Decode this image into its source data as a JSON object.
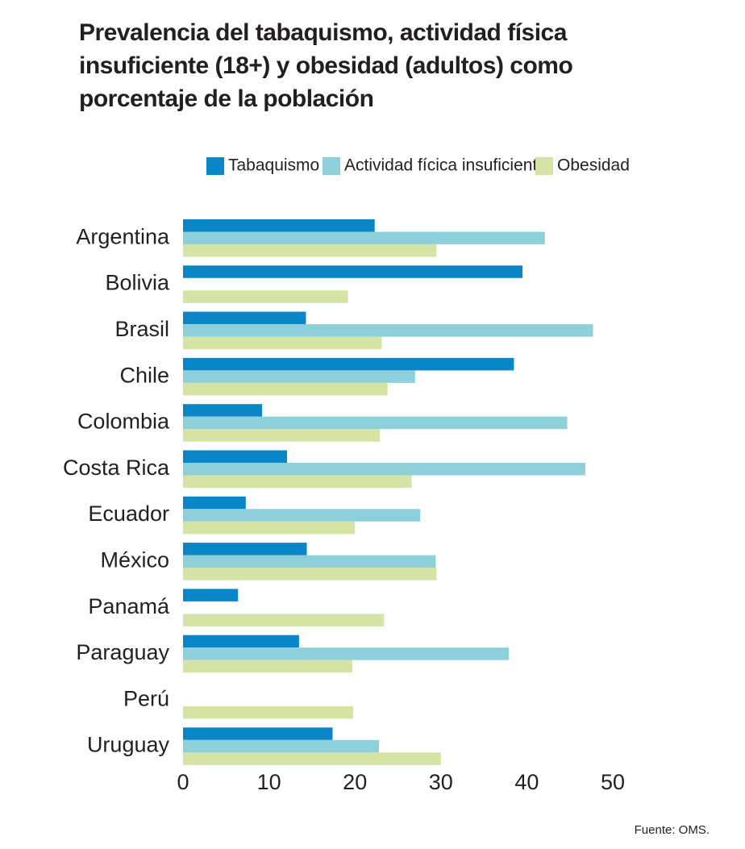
{
  "chart_data": {
    "type": "bar",
    "orientation": "horizontal",
    "title": "Prevalencia del tabaquismo, actividad física insuficiente (18+) y obesidad (adultos) como porcentaje de la población",
    "source": "Fuente: OMS.",
    "categories": [
      "Argentina",
      "Bolivia",
      "Brasil",
      "Chile",
      "Colombia",
      "Costa Rica",
      "Ecuador",
      "México",
      "Panamá",
      "Paraguay",
      "Perú",
      "Uruguay"
    ],
    "series": [
      {
        "name": "Tabaquismo",
        "color": "#0a85c8",
        "values": [
          22.3,
          39.5,
          14.3,
          38.5,
          9.2,
          12.1,
          7.3,
          14.4,
          6.4,
          13.5,
          null,
          17.4
        ]
      },
      {
        "name": "Actividad fícica insuficiente",
        "color": "#8ecfdc",
        "values": [
          42.1,
          null,
          47.7,
          27.0,
          44.7,
          46.8,
          27.6,
          29.4,
          null,
          37.9,
          null,
          22.8
        ]
      },
      {
        "name": "Obesidad",
        "color": "#d5e3a4",
        "values": [
          29.5,
          19.2,
          23.1,
          23.8,
          22.9,
          26.6,
          20.0,
          29.5,
          23.4,
          19.7,
          19.8,
          30.0
        ]
      }
    ],
    "xlim": [
      0,
      50
    ],
    "xticks": [
      0,
      10,
      20,
      30,
      40,
      50
    ],
    "grid": false
  }
}
